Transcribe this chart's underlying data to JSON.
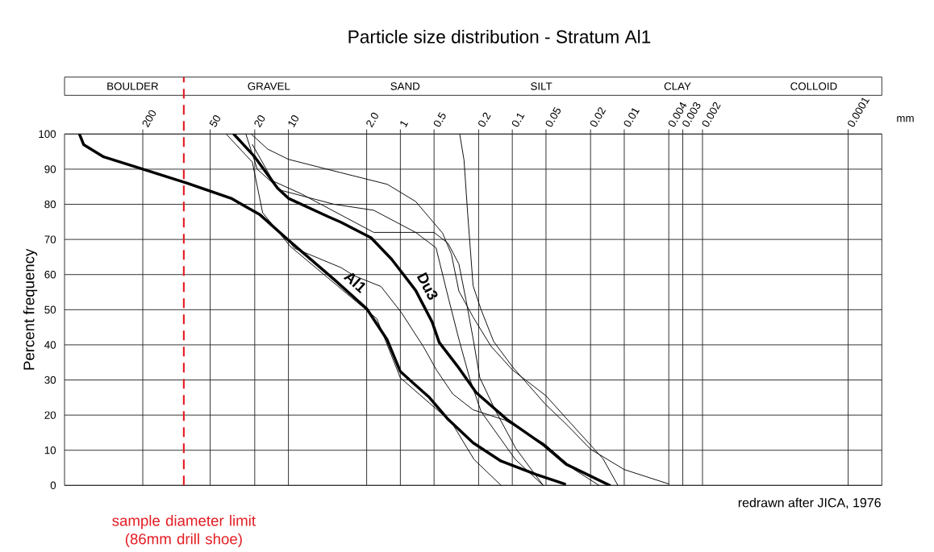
{
  "chart_data": {
    "type": "line",
    "title": "Particle size distribution - Stratum Al1",
    "ylabel": "Percent  frequency",
    "xlabel": "mm",
    "log": "x",
    "xlim": [
      1000,
      5e-05
    ],
    "xticks": [
      200,
      50,
      20,
      10,
      {
        "value": 2,
        "label": "2.0"
      },
      1,
      0.5,
      0.2,
      0.1,
      0.05,
      0.02,
      0.01,
      0.004,
      0.003,
      0.002,
      0.0001
    ],
    "ylim": [
      0,
      100
    ],
    "yticks": [
      0,
      10,
      20,
      30,
      40,
      50,
      60,
      70,
      80,
      90,
      100
    ],
    "grid": true,
    "marker": "none",
    "line_style": "solid",
    "ref_lines": [
      {
        "axis": "x",
        "value": 86,
        "label": "sample diameter limit (86mm drill shoe)",
        "color": "#e31e24",
        "line_style": "dashed"
      }
    ],
    "annotations": [
      "redrawn after JICA, 1976",
      "BOULDER",
      "GRAVEL",
      "SAND",
      "SILT",
      "CLAY",
      "COLLOID"
    ],
    "series": [
      {
        "name": "Al1",
        "color": "#000000",
        "x": [
          736,
          675,
          447,
          200,
          80,
          32.5,
          17.9,
          10,
          3.9,
          2,
          1.31,
          1,
          0.55,
          0.375,
          0.224,
          0.126,
          0.061,
          0.034
        ],
        "values": [
          100,
          97,
          93.5,
          90,
          86,
          81.7,
          77,
          69.8,
          58.6,
          50.3,
          41.4,
          32.4,
          25,
          18.8,
          12.1,
          6.9,
          3.1,
          0.4
        ]
      },
      {
        "name": "Du3",
        "color": "#000000",
        "x": [
          30.8,
          20,
          12.5,
          10,
          4.43,
          3.4,
          1.83,
          1.2,
          0.73,
          0.52,
          0.45,
          0.31,
          0.21,
          0.112,
          0.052,
          0.033,
          0.0135
        ],
        "values": [
          100,
          93.5,
          84.6,
          81.7,
          76.5,
          74.9,
          70.5,
          64.4,
          55.5,
          46.5,
          40.7,
          34,
          26.4,
          18.8,
          11.4,
          6,
          0
        ]
      },
      {
        "color": "#000000",
        "x": [
          36,
          21,
          17,
          9.6,
          1.62,
          1,
          0.35,
          0.22,
          0.126
        ],
        "values": [
          100,
          92,
          77.6,
          68,
          47.4,
          30.6,
          18,
          7.4,
          0
        ]
      },
      {
        "color": "#000000",
        "x": [
          24,
          19,
          11.7,
          3.9,
          1.73,
          0.73,
          0.48,
          0.37,
          0.3,
          0.24,
          0.19,
          0.094,
          0.053
        ],
        "values": [
          100,
          90,
          84,
          80,
          78.3,
          72,
          67.6,
          53,
          41.6,
          30.4,
          21,
          7.4,
          0
        ]
      },
      {
        "color": "#000000",
        "x": [
          21.5,
          15.3,
          10,
          3.4,
          1.31,
          0.73,
          0.42,
          0.35,
          0.3,
          0.224,
          0.155,
          0.1,
          0.05,
          0.028,
          0.0155,
          0.0114
        ],
        "values": [
          100,
          95.7,
          92.8,
          89,
          85.7,
          80.8,
          71.8,
          65.8,
          55.3,
          47.9,
          39.6,
          32.9,
          25.5,
          16.6,
          7.6,
          0
        ]
      },
      {
        "color": "#000000",
        "x": [
          0.295,
          0.27,
          0.25,
          0.224,
          0.19,
          0.147,
          0.1,
          0.051,
          0.032,
          0.02,
          0.01,
          0.004
        ],
        "values": [
          100,
          92.6,
          77,
          56.8,
          50,
          41,
          33.8,
          23.2,
          17,
          10.3,
          4.5,
          0.4
        ]
      },
      {
        "color": "#000000",
        "x": [
          10,
          8.85,
          3.4,
          2.6,
          1.49,
          0.98,
          0.62,
          0.475,
          0.34,
          0.224,
          0.117,
          0.052,
          0.028,
          0.0168
        ],
        "values": [
          69.8,
          67.5,
          62,
          59.7,
          56.6,
          49.2,
          39.4,
          32.8,
          26,
          21.5,
          18.6,
          11.9,
          4.5,
          0
        ]
      },
      {
        "color": "#000000",
        "x": [
          21,
          13.7,
          7.7,
          1.73,
          0.5,
          0.375,
          0.3,
          0.26,
          0.224,
          0.195,
          0.14,
          0.093,
          0.053
        ],
        "values": [
          97,
          86.6,
          83,
          72,
          72,
          68.9,
          63,
          53,
          41.8,
          30.6,
          21,
          10.5,
          0
        ]
      }
    ]
  }
}
